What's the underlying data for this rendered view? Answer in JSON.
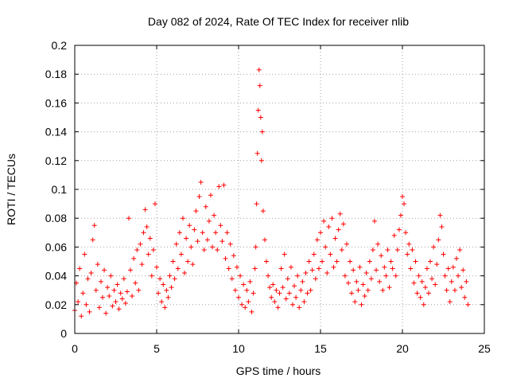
{
  "chart_data": {
    "type": "scatter",
    "title": "Day 082 of 2024, Rate Of TEC Index for receiver nlib",
    "xlabel": "GPS time / hours",
    "ylabel": "ROTI / TECUs",
    "xlim": [
      0,
      25
    ],
    "ylim": [
      0,
      0.2
    ],
    "x_ticks": [
      0,
      5,
      10,
      15,
      20,
      25
    ],
    "x_tick_labels": [
      "0",
      "5",
      "10",
      "15",
      "20",
      "25"
    ],
    "y_ticks": [
      0,
      0.02,
      0.04,
      0.06,
      0.08,
      0.1,
      0.12,
      0.14,
      0.16,
      0.18,
      0.2
    ],
    "y_tick_labels": [
      "0",
      "0.02",
      "0.04",
      "0.06",
      "0.08",
      "0.1",
      "0.12",
      "0.14",
      "0.16",
      "0.18",
      "0.2"
    ],
    "grid": true,
    "marker": "plus",
    "color": "#ff0000",
    "series": [
      {
        "name": "ROTI",
        "points": [
          [
            0.0,
            0.016
          ],
          [
            0.1,
            0.035
          ],
          [
            0.2,
            0.022
          ],
          [
            0.3,
            0.045
          ],
          [
            0.4,
            0.012
          ],
          [
            0.5,
            0.028
          ],
          [
            0.6,
            0.055
          ],
          [
            0.7,
            0.02
          ],
          [
            0.8,
            0.038
          ],
          [
            0.9,
            0.015
          ],
          [
            1.0,
            0.042
          ],
          [
            1.1,
            0.065
          ],
          [
            1.2,
            0.075
          ],
          [
            1.3,
            0.03
          ],
          [
            1.4,
            0.048
          ],
          [
            1.5,
            0.018
          ],
          [
            1.6,
            0.036
          ],
          [
            1.7,
            0.025
          ],
          [
            1.8,
            0.044
          ],
          [
            1.9,
            0.014
          ],
          [
            2.0,
            0.032
          ],
          [
            2.1,
            0.026
          ],
          [
            2.2,
            0.04
          ],
          [
            2.3,
            0.019
          ],
          [
            2.4,
            0.03
          ],
          [
            2.5,
            0.022
          ],
          [
            2.6,
            0.034
          ],
          [
            2.7,
            0.017
          ],
          [
            2.8,
            0.028
          ],
          [
            2.9,
            0.024
          ],
          [
            3.0,
            0.038
          ],
          [
            3.1,
            0.021
          ],
          [
            3.2,
            0.029
          ],
          [
            3.3,
            0.08
          ],
          [
            3.4,
            0.044
          ],
          [
            3.5,
            0.026
          ],
          [
            3.6,
            0.052
          ],
          [
            3.7,
            0.035
          ],
          [
            3.8,
            0.058
          ],
          [
            3.9,
            0.03
          ],
          [
            4.0,
            0.062
          ],
          [
            4.1,
            0.048
          ],
          [
            4.2,
            0.07
          ],
          [
            4.3,
            0.086
          ],
          [
            4.4,
            0.074
          ],
          [
            4.5,
            0.055
          ],
          [
            4.6,
            0.066
          ],
          [
            4.7,
            0.04
          ],
          [
            4.8,
            0.058
          ],
          [
            4.9,
            0.09
          ],
          [
            5.0,
            0.046
          ],
          [
            5.1,
            0.028
          ],
          [
            5.2,
            0.038
          ],
          [
            5.3,
            0.022
          ],
          [
            5.4,
            0.034
          ],
          [
            5.5,
            0.018
          ],
          [
            5.6,
            0.03
          ],
          [
            5.7,
            0.025
          ],
          [
            5.8,
            0.04
          ],
          [
            5.9,
            0.032
          ],
          [
            6.0,
            0.05
          ],
          [
            6.1,
            0.038
          ],
          [
            6.2,
            0.062
          ],
          [
            6.3,
            0.045
          ],
          [
            6.4,
            0.07
          ],
          [
            6.5,
            0.055
          ],
          [
            6.6,
            0.08
          ],
          [
            6.7,
            0.042
          ],
          [
            6.8,
            0.066
          ],
          [
            6.9,
            0.05
          ],
          [
            7.0,
            0.075
          ],
          [
            7.1,
            0.06
          ],
          [
            7.2,
            0.048
          ],
          [
            7.3,
            0.072
          ],
          [
            7.4,
            0.085
          ],
          [
            7.5,
            0.064
          ],
          [
            7.6,
            0.095
          ],
          [
            7.7,
            0.105
          ],
          [
            7.8,
            0.07
          ],
          [
            7.9,
            0.058
          ],
          [
            8.0,
            0.088
          ],
          [
            8.1,
            0.065
          ],
          [
            8.2,
            0.078
          ],
          [
            8.3,
            0.096
          ],
          [
            8.4,
            0.06
          ],
          [
            8.5,
            0.082
          ],
          [
            8.6,
            0.07
          ],
          [
            8.7,
            0.058
          ],
          [
            8.8,
            0.102
          ],
          [
            8.9,
            0.075
          ],
          [
            9.0,
            0.064
          ],
          [
            9.1,
            0.103
          ],
          [
            9.2,
            0.052
          ],
          [
            9.3,
            0.07
          ],
          [
            9.4,
            0.045
          ],
          [
            9.5,
            0.062
          ],
          [
            9.6,
            0.038
          ],
          [
            9.7,
            0.054
          ],
          [
            9.8,
            0.03
          ],
          [
            9.9,
            0.046
          ],
          [
            10.0,
            0.025
          ],
          [
            10.1,
            0.04
          ],
          [
            10.2,
            0.02
          ],
          [
            10.3,
            0.034
          ],
          [
            10.4,
            0.018
          ],
          [
            10.5,
            0.03
          ],
          [
            10.6,
            0.022
          ],
          [
            10.7,
            0.036
          ],
          [
            10.8,
            0.015
          ],
          [
            10.9,
            0.028
          ],
          [
            11.0,
            0.045
          ],
          [
            11.05,
            0.06
          ],
          [
            11.1,
            0.09
          ],
          [
            11.15,
            0.125
          ],
          [
            11.2,
            0.155
          ],
          [
            11.25,
            0.183
          ],
          [
            11.3,
            0.172
          ],
          [
            11.35,
            0.15
          ],
          [
            11.4,
            0.12
          ],
          [
            11.45,
            0.14
          ],
          [
            11.5,
            0.085
          ],
          [
            11.6,
            0.065
          ],
          [
            11.7,
            0.05
          ],
          [
            11.8,
            0.04
          ],
          [
            11.9,
            0.032
          ],
          [
            12.0,
            0.025
          ],
          [
            12.1,
            0.034
          ],
          [
            12.2,
            0.022
          ],
          [
            12.3,
            0.03
          ],
          [
            12.4,
            0.018
          ],
          [
            12.5,
            0.028
          ],
          [
            12.6,
            0.045
          ],
          [
            12.7,
            0.032
          ],
          [
            12.8,
            0.055
          ],
          [
            12.9,
            0.024
          ],
          [
            13.0,
            0.038
          ],
          [
            13.1,
            0.028
          ],
          [
            13.2,
            0.046
          ],
          [
            13.3,
            0.02
          ],
          [
            13.4,
            0.033
          ],
          [
            13.5,
            0.025
          ],
          [
            13.6,
            0.04
          ],
          [
            13.7,
            0.018
          ],
          [
            13.8,
            0.03
          ],
          [
            13.9,
            0.036
          ],
          [
            14.0,
            0.022
          ],
          [
            14.1,
            0.042
          ],
          [
            14.2,
            0.028
          ],
          [
            14.3,
            0.05
          ],
          [
            14.4,
            0.03
          ],
          [
            14.5,
            0.044
          ],
          [
            14.6,
            0.055
          ],
          [
            14.7,
            0.038
          ],
          [
            14.8,
            0.065
          ],
          [
            14.9,
            0.045
          ],
          [
            15.0,
            0.07
          ],
          [
            15.1,
            0.05
          ],
          [
            15.2,
            0.078
          ],
          [
            15.3,
            0.06
          ],
          [
            15.4,
            0.042
          ],
          [
            15.5,
            0.074
          ],
          [
            15.6,
            0.055
          ],
          [
            15.7,
            0.08
          ],
          [
            15.8,
            0.046
          ],
          [
            15.9,
            0.066
          ],
          [
            16.0,
            0.05
          ],
          [
            16.1,
            0.072
          ],
          [
            16.2,
            0.083
          ],
          [
            16.3,
            0.058
          ],
          [
            16.4,
            0.076
          ],
          [
            16.5,
            0.04
          ],
          [
            16.6,
            0.062
          ],
          [
            16.7,
            0.035
          ],
          [
            16.8,
            0.05
          ],
          [
            16.9,
            0.028
          ],
          [
            17.0,
            0.044
          ],
          [
            17.1,
            0.022
          ],
          [
            17.2,
            0.036
          ],
          [
            17.3,
            0.03
          ],
          [
            17.4,
            0.046
          ],
          [
            17.5,
            0.02
          ],
          [
            17.6,
            0.034
          ],
          [
            17.7,
            0.026
          ],
          [
            17.8,
            0.042
          ],
          [
            17.9,
            0.03
          ],
          [
            18.0,
            0.05
          ],
          [
            18.1,
            0.038
          ],
          [
            18.2,
            0.058
          ],
          [
            18.3,
            0.078
          ],
          [
            18.4,
            0.044
          ],
          [
            18.5,
            0.062
          ],
          [
            18.6,
            0.036
          ],
          [
            18.7,
            0.054
          ],
          [
            18.8,
            0.03
          ],
          [
            18.9,
            0.046
          ],
          [
            19.0,
            0.04
          ],
          [
            19.1,
            0.058
          ],
          [
            19.2,
            0.032
          ],
          [
            19.3,
            0.05
          ],
          [
            19.4,
            0.045
          ],
          [
            19.5,
            0.068
          ],
          [
            19.6,
            0.04
          ],
          [
            19.7,
            0.058
          ],
          [
            19.8,
            0.072
          ],
          [
            19.9,
            0.082
          ],
          [
            20.0,
            0.095
          ],
          [
            20.1,
            0.09
          ],
          [
            20.2,
            0.07
          ],
          [
            20.3,
            0.055
          ],
          [
            20.4,
            0.062
          ],
          [
            20.5,
            0.045
          ],
          [
            20.6,
            0.058
          ],
          [
            20.7,
            0.035
          ],
          [
            20.8,
            0.05
          ],
          [
            20.9,
            0.028
          ],
          [
            21.0,
            0.04
          ],
          [
            21.1,
            0.025
          ],
          [
            21.2,
            0.036
          ],
          [
            21.3,
            0.02
          ],
          [
            21.4,
            0.032
          ],
          [
            21.5,
            0.045
          ],
          [
            21.6,
            0.028
          ],
          [
            21.7,
            0.05
          ],
          [
            21.8,
            0.038
          ],
          [
            21.9,
            0.06
          ],
          [
            22.0,
            0.034
          ],
          [
            22.1,
            0.048
          ],
          [
            22.2,
            0.065
          ],
          [
            22.3,
            0.082
          ],
          [
            22.4,
            0.074
          ],
          [
            22.5,
            0.055
          ],
          [
            22.6,
            0.04
          ],
          [
            22.7,
            0.03
          ],
          [
            22.8,
            0.045
          ],
          [
            22.9,
            0.022
          ],
          [
            23.0,
            0.036
          ],
          [
            23.1,
            0.046
          ],
          [
            23.2,
            0.03
          ],
          [
            23.3,
            0.052
          ],
          [
            23.4,
            0.04
          ],
          [
            23.5,
            0.058
          ],
          [
            23.6,
            0.032
          ],
          [
            23.7,
            0.044
          ],
          [
            23.8,
            0.025
          ],
          [
            23.9,
            0.036
          ],
          [
            24.0,
            0.02
          ]
        ]
      }
    ]
  }
}
